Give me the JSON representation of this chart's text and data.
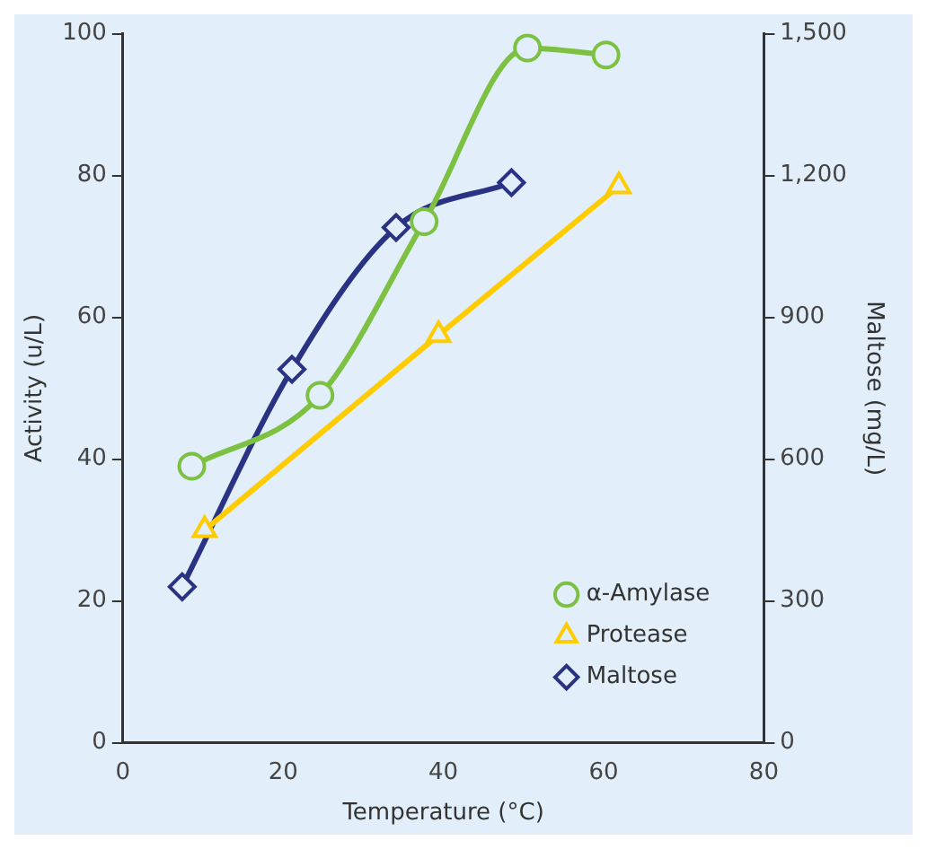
{
  "chart_data": {
    "type": "line",
    "xlabel": "Temperature (°C)",
    "ylabel": "Activity (u/L)",
    "y2label": "Maltose (mg/L)",
    "xlim": [
      0,
      80
    ],
    "xticks": [
      0,
      20,
      40,
      60,
      80
    ],
    "ylim": [
      0,
      100
    ],
    "yticks": [
      0,
      20,
      40,
      60,
      80,
      100
    ],
    "y2lim": [
      0,
      1500
    ],
    "y2ticks": [
      0,
      {
        "value": 300,
        "label": "300"
      },
      {
        "value": 600,
        "label": "600"
      },
      {
        "value": 900,
        "label": "900"
      },
      {
        "value": 1200,
        "label": "1,200"
      },
      {
        "value": 1500,
        "label": "1,500"
      }
    ],
    "grid": false,
    "legend": "bottom right",
    "series": [
      {
        "name": "α-Amylase",
        "color": "#7dc142",
        "marker": "circle",
        "x": [
          8.6,
          24.6,
          37.6,
          50.5,
          60.3
        ],
        "values": [
          39,
          49,
          73.5,
          98,
          97
        ]
      },
      {
        "name": "Protease",
        "color": "#ffcc00",
        "marker": "triangle",
        "x": [
          10.2,
          39.4,
          61.9
        ],
        "values": [
          30,
          57.5,
          78.5
        ]
      },
      {
        "name": "Maltose",
        "color": "#2a3283",
        "marker": "diamond",
        "axis": "y2",
        "x": [
          7.4,
          21.1,
          34.1,
          48.5
        ],
        "values": [
          330,
          790,
          1090,
          1185
        ]
      }
    ]
  }
}
